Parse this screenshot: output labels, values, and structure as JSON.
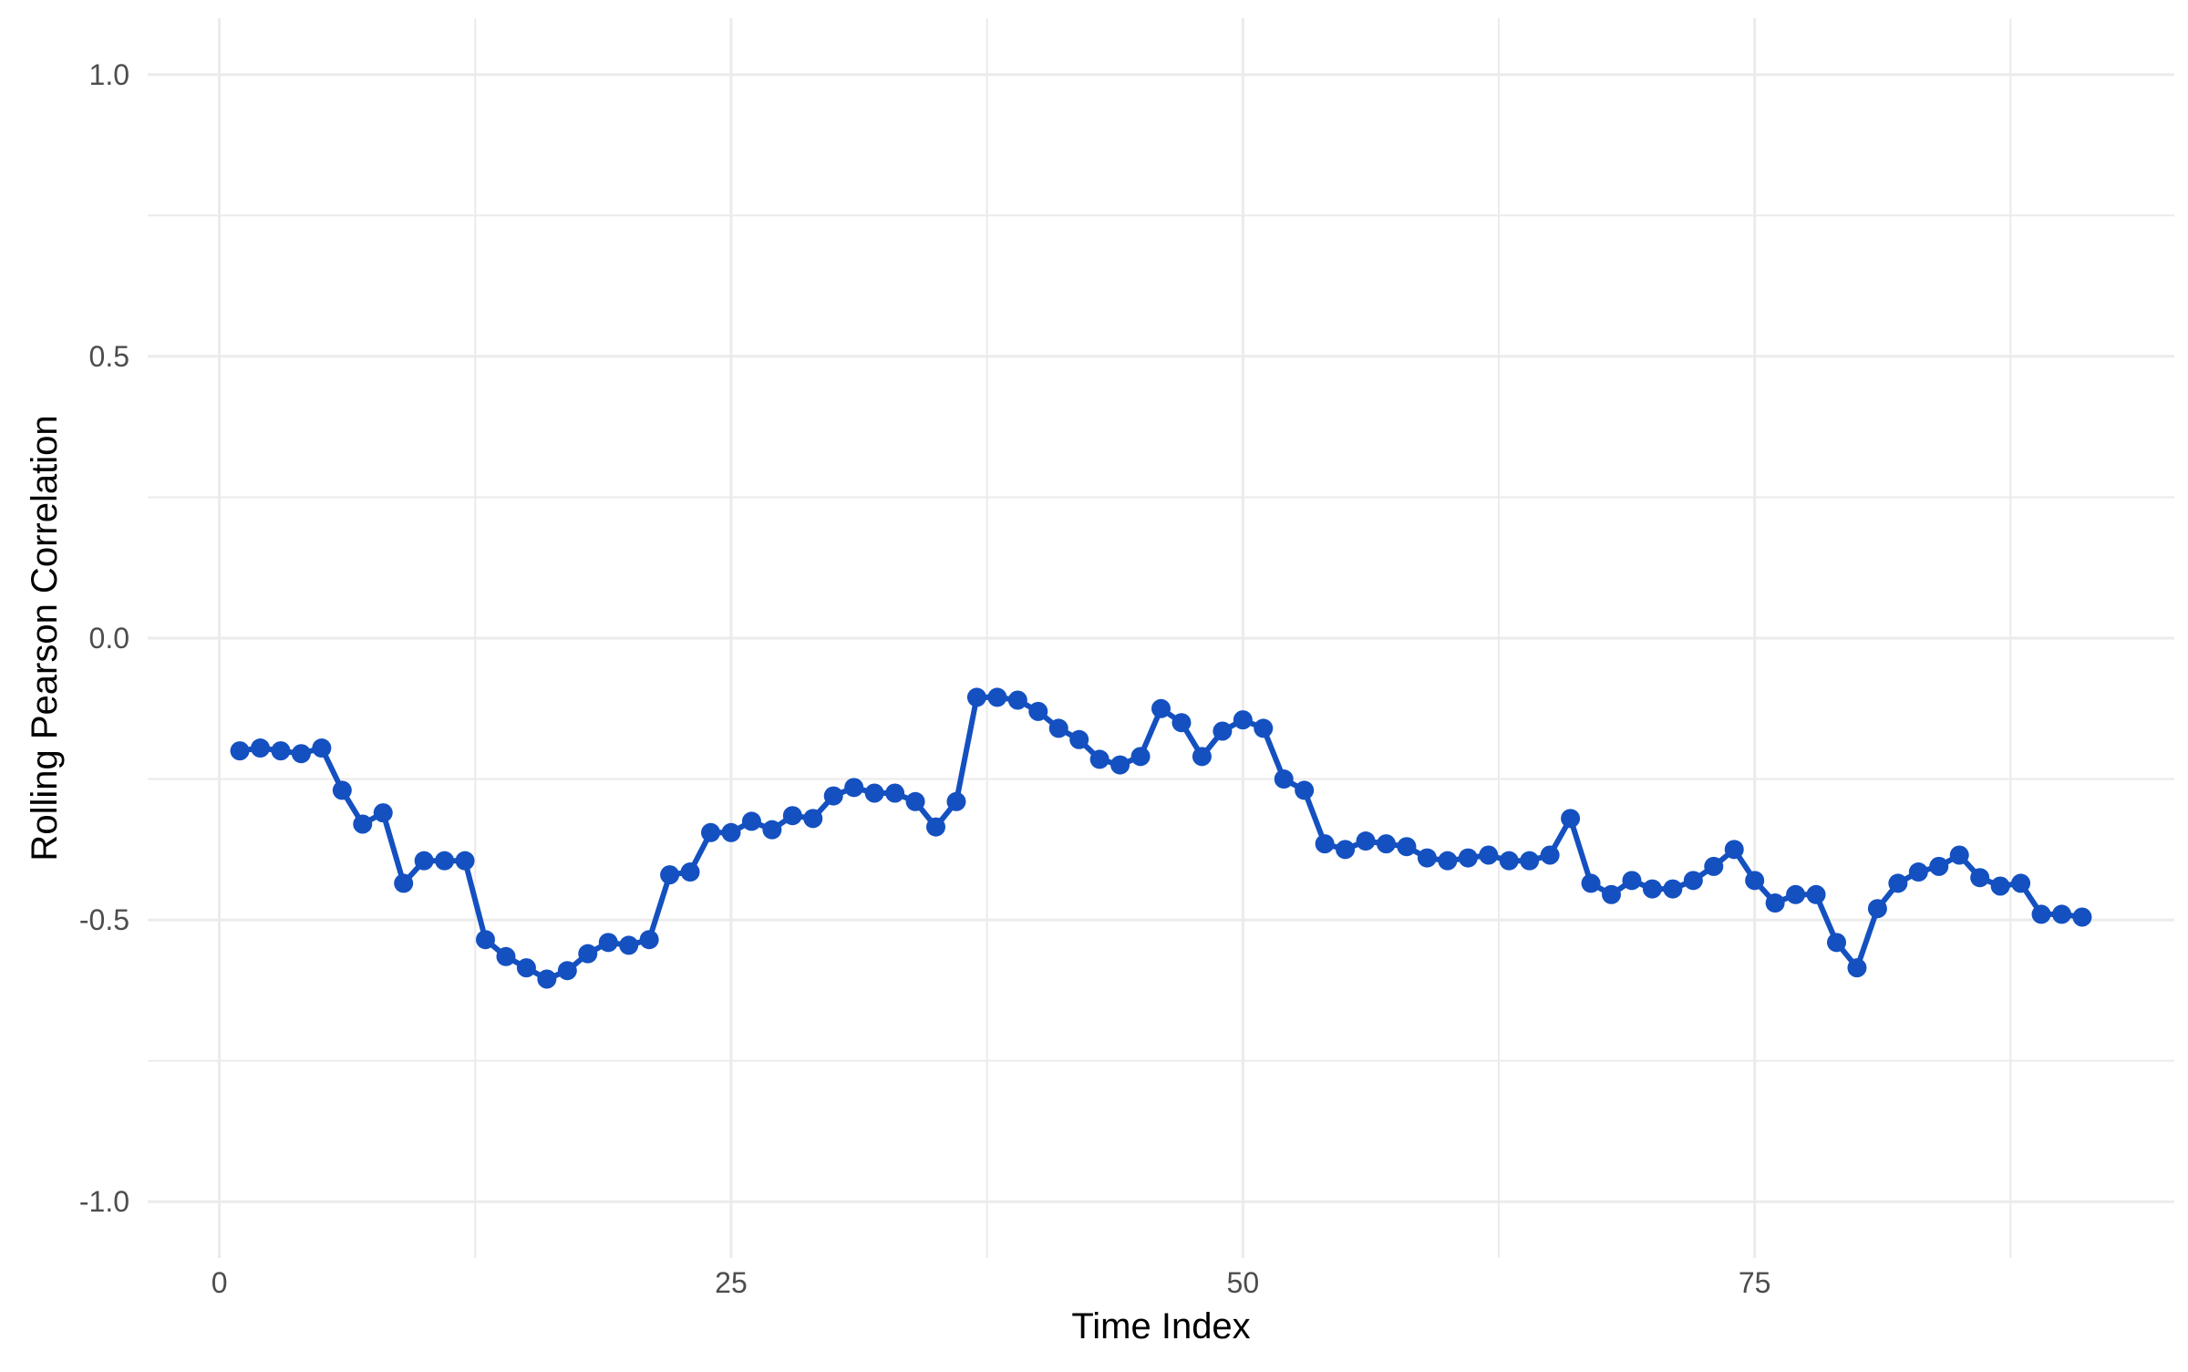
{
  "chart_data": {
    "type": "line",
    "xlabel": "Time Index",
    "ylabel": "Rolling Pearson Correlation",
    "xlim": [
      -3.5,
      95.5
    ],
    "ylim": [
      -1.1,
      1.1
    ],
    "x_ticks": [
      0,
      25,
      50,
      75
    ],
    "x_tick_labels": [
      "0",
      "25",
      "50",
      "75"
    ],
    "x_minor_ticks": [
      12.5,
      37.5,
      62.5,
      87.5
    ],
    "y_ticks": [
      -1.0,
      -0.5,
      0.0,
      0.5,
      1.0
    ],
    "y_tick_labels": [
      "-1.0",
      "-0.5",
      "0.0",
      "0.5",
      "1.0"
    ],
    "y_minor_ticks": [
      -0.75,
      -0.25,
      0.25,
      0.75
    ],
    "grid": true,
    "legend": "none",
    "line_color": "#1450C0",
    "point_color": "#1450C0",
    "series": [
      {
        "x": [
          1,
          2,
          3,
          4,
          5,
          6,
          7,
          8,
          9,
          10,
          11,
          12,
          13,
          14,
          15,
          16,
          17,
          18,
          19,
          20,
          21,
          22,
          23,
          24,
          25,
          26,
          27,
          28,
          29,
          30,
          31,
          32,
          33,
          34,
          35,
          36,
          37,
          38,
          39,
          40,
          41,
          42,
          43,
          44,
          45,
          46,
          47,
          48,
          49,
          50,
          51,
          52,
          53,
          54,
          55,
          56,
          57,
          58,
          59,
          60,
          61,
          62,
          63,
          64,
          65,
          66,
          67,
          68,
          69,
          70,
          71,
          72,
          73,
          74,
          75,
          76,
          77,
          78,
          79,
          80,
          81,
          82,
          83,
          84,
          85,
          86,
          87,
          88,
          89,
          90,
          91
        ],
        "values": [
          -0.2,
          -0.195,
          -0.2,
          -0.205,
          -0.195,
          -0.27,
          -0.33,
          -0.31,
          -0.435,
          -0.395,
          -0.395,
          -0.395,
          -0.535,
          -0.565,
          -0.585,
          -0.605,
          -0.59,
          -0.56,
          -0.54,
          -0.545,
          -0.535,
          -0.42,
          -0.415,
          -0.345,
          -0.345,
          -0.325,
          -0.34,
          -0.315,
          -0.32,
          -0.28,
          -0.265,
          -0.275,
          -0.275,
          -0.29,
          -0.335,
          -0.29,
          -0.105,
          -0.105,
          -0.11,
          -0.13,
          -0.16,
          -0.18,
          -0.215,
          -0.225,
          -0.21,
          -0.125,
          -0.15,
          -0.21,
          -0.165,
          -0.145,
          -0.16,
          -0.25,
          -0.27,
          -0.365,
          -0.375,
          -0.36,
          -0.365,
          -0.37,
          -0.39,
          -0.395,
          -0.39,
          -0.385,
          -0.395,
          -0.395,
          -0.385,
          -0.32,
          -0.435,
          -0.455,
          -0.43,
          -0.445,
          -0.445,
          -0.43,
          -0.405,
          -0.375,
          -0.43,
          -0.47,
          -0.455,
          -0.455,
          -0.54,
          -0.585,
          -0.48,
          -0.435,
          -0.415,
          -0.405,
          -0.385,
          -0.425,
          -0.44,
          -0.435,
          -0.49,
          -0.49,
          -0.495
        ]
      }
    ]
  }
}
